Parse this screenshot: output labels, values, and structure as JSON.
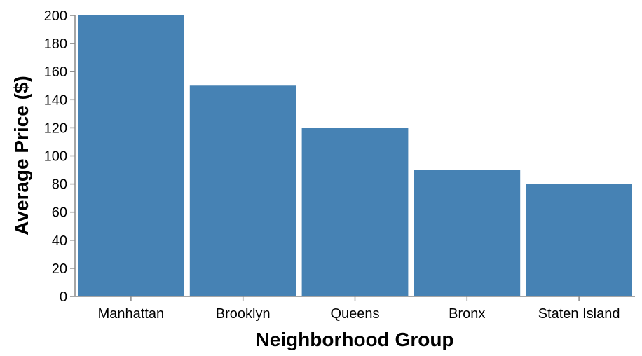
{
  "chart_data": {
    "type": "bar",
    "categories": [
      "Manhattan",
      "Brooklyn",
      "Queens",
      "Bronx",
      "Staten Island"
    ],
    "values": [
      200,
      150,
      120,
      90,
      80
    ],
    "title": "",
    "xlabel": "Neighborhood Group",
    "ylabel": "Average Price ($)",
    "ylim": [
      0,
      200
    ],
    "yticks": [
      0,
      20,
      40,
      60,
      80,
      100,
      120,
      140,
      160,
      180,
      200
    ],
    "grid": false,
    "legend": "none",
    "bar_color": "#4682b4"
  }
}
